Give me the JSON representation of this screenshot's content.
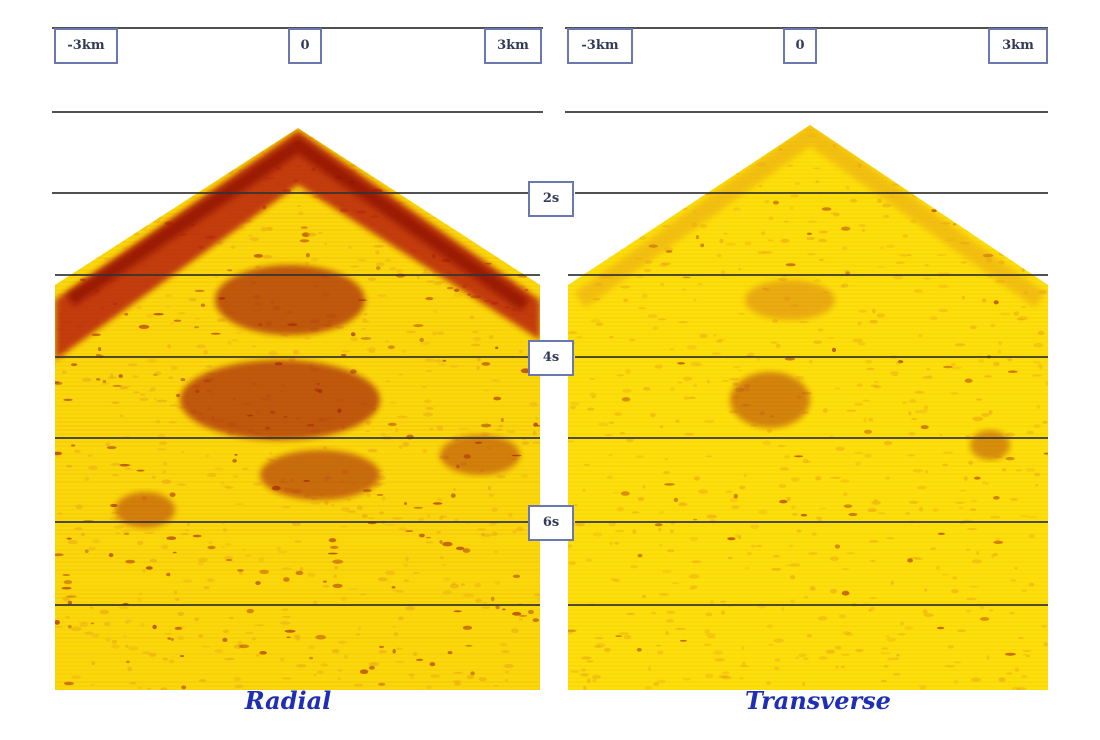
{
  "panels": [
    {
      "id": "radial",
      "title": "Radial",
      "offset_labels": [
        "-3km",
        "0",
        "3km"
      ]
    },
    {
      "id": "transverse",
      "title": "Transverse",
      "offset_labels": [
        "-3km",
        "0",
        "3km"
      ]
    }
  ],
  "time_labels": [
    "2s",
    "4s",
    "6s"
  ],
  "colors": {
    "background": "#ffffff",
    "low": "#ffdd00",
    "mid": "#e8a018",
    "high": "#a01808",
    "title": "#1f2fb5",
    "label_border": "#6b78b0"
  },
  "amplitude_scale": {
    "radial": 1.0,
    "transverse": 0.45
  }
}
